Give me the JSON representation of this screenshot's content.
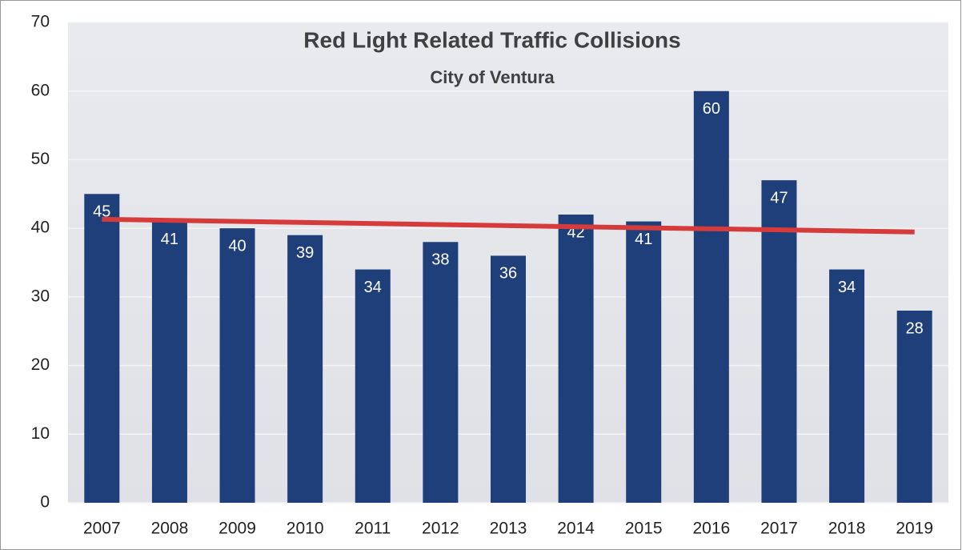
{
  "chart_data": {
    "type": "bar",
    "title": "Red Light Related Traffic Collisions",
    "subtitle": "City of Ventura",
    "categories": [
      "2007",
      "2008",
      "2009",
      "2010",
      "2011",
      "2012",
      "2013",
      "2014",
      "2015",
      "2016",
      "2017",
      "2018",
      "2019"
    ],
    "values": [
      45,
      41,
      40,
      39,
      34,
      38,
      36,
      42,
      41,
      60,
      47,
      34,
      28
    ],
    "color": "#1f3f7a",
    "value_label_color": "#ffffff",
    "ylim": [
      0,
      70
    ],
    "yticks": [
      0,
      10,
      20,
      30,
      40,
      50,
      60,
      70
    ],
    "grid": true,
    "trendline": {
      "type": "linear",
      "color": "#d63b3b"
    }
  }
}
